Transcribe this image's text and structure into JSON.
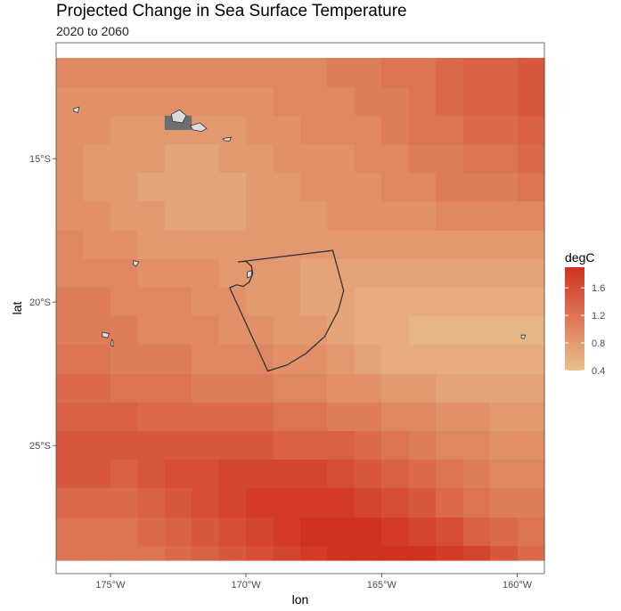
{
  "chart_data": {
    "type": "heatmap",
    "title": "Projected Change in Sea Surface Temperature",
    "subtitle": "2020 to 2060",
    "xlabel": "lon",
    "ylabel": "lat",
    "x_ticks": [
      {
        "value": -175,
        "label": "175°W"
      },
      {
        "value": -170,
        "label": "170°W"
      },
      {
        "value": -165,
        "label": "165°W"
      },
      {
        "value": -160,
        "label": "160°W"
      }
    ],
    "y_ticks": [
      {
        "value": -15,
        "label": "15°S"
      },
      {
        "value": -20,
        "label": "20°S"
      },
      {
        "value": -25,
        "label": "25°S"
      }
    ],
    "xlim": [
      -177,
      -159
    ],
    "ylim": [
      -29,
      -11.3
    ],
    "grid": {
      "lon_start": -177,
      "lat_start": -11.5,
      "cell_deg": 1,
      "cols": 18,
      "rows": 18
    },
    "values": [
      [
        1.0,
        1.0,
        1.0,
        1.0,
        1.0,
        1.0,
        1.0,
        1.0,
        1.0,
        1.0,
        1.1,
        1.1,
        1.2,
        1.2,
        1.3,
        1.4,
        1.4,
        1.5
      ],
      [
        0.9,
        0.9,
        0.9,
        0.9,
        0.9,
        0.9,
        0.9,
        0.9,
        1.0,
        1.0,
        1.0,
        1.1,
        1.1,
        1.2,
        1.3,
        1.4,
        1.4,
        1.5
      ],
      [
        0.9,
        0.9,
        0.8,
        0.8,
        0.8,
        0.8,
        0.8,
        0.9,
        0.9,
        1.0,
        1.0,
        1.0,
        1.1,
        1.2,
        1.2,
        1.3,
        1.3,
        1.4
      ],
      [
        0.9,
        0.8,
        0.8,
        0.8,
        0.7,
        0.7,
        0.8,
        0.8,
        0.9,
        0.9,
        0.9,
        1.0,
        1.0,
        1.1,
        1.1,
        1.2,
        1.2,
        1.3
      ],
      [
        0.9,
        0.8,
        0.8,
        0.7,
        0.7,
        0.7,
        0.7,
        0.8,
        0.8,
        0.9,
        0.9,
        0.9,
        1.0,
        1.0,
        1.1,
        1.1,
        1.1,
        1.2
      ],
      [
        0.9,
        0.9,
        0.8,
        0.8,
        0.7,
        0.7,
        0.7,
        0.8,
        0.8,
        0.8,
        0.9,
        0.9,
        0.9,
        0.9,
        1.0,
        1.0,
        1.0,
        1.0
      ],
      [
        1.0,
        0.9,
        0.9,
        0.8,
        0.8,
        0.8,
        0.8,
        0.8,
        0.8,
        0.8,
        0.8,
        0.8,
        0.8,
        0.8,
        0.8,
        0.8,
        0.8,
        0.8
      ],
      [
        1.0,
        1.0,
        1.0,
        0.9,
        0.9,
        0.9,
        0.8,
        0.8,
        0.8,
        0.7,
        0.7,
        0.7,
        0.7,
        0.7,
        0.7,
        0.7,
        0.7,
        0.7
      ],
      [
        1.1,
        1.1,
        1.0,
        1.0,
        1.0,
        0.9,
        0.9,
        0.8,
        0.8,
        0.7,
        0.7,
        0.6,
        0.6,
        0.6,
        0.6,
        0.6,
        0.6,
        0.6
      ],
      [
        1.1,
        1.1,
        1.1,
        1.0,
        1.0,
        1.0,
        0.9,
        0.9,
        0.8,
        0.8,
        0.7,
        0.6,
        0.6,
        0.5,
        0.5,
        0.5,
        0.5,
        0.5
      ],
      [
        1.2,
        1.2,
        1.1,
        1.1,
        1.1,
        1.0,
        1.0,
        1.0,
        0.9,
        0.9,
        0.8,
        0.7,
        0.6,
        0.6,
        0.6,
        0.6,
        0.6,
        0.6
      ],
      [
        1.3,
        1.3,
        1.2,
        1.2,
        1.2,
        1.1,
        1.1,
        1.1,
        1.0,
        1.0,
        0.9,
        0.9,
        0.8,
        0.8,
        0.7,
        0.7,
        0.7,
        0.7
      ],
      [
        1.4,
        1.4,
        1.4,
        1.3,
        1.3,
        1.3,
        1.3,
        1.3,
        1.2,
        1.2,
        1.1,
        1.1,
        1.0,
        1.0,
        0.9,
        0.9,
        0.8,
        0.8
      ],
      [
        1.5,
        1.5,
        1.5,
        1.5,
        1.5,
        1.5,
        1.5,
        1.5,
        1.4,
        1.4,
        1.4,
        1.3,
        1.2,
        1.1,
        1.0,
        1.0,
        0.9,
        0.9
      ],
      [
        1.5,
        1.5,
        1.4,
        1.5,
        1.6,
        1.6,
        1.7,
        1.7,
        1.7,
        1.7,
        1.6,
        1.5,
        1.4,
        1.3,
        1.2,
        1.1,
        1.0,
        1.0
      ],
      [
        1.3,
        1.3,
        1.3,
        1.4,
        1.5,
        1.6,
        1.7,
        1.8,
        1.8,
        1.8,
        1.8,
        1.7,
        1.6,
        1.5,
        1.3,
        1.2,
        1.1,
        1.1
      ],
      [
        1.2,
        1.2,
        1.2,
        1.3,
        1.4,
        1.5,
        1.6,
        1.7,
        1.8,
        1.9,
        1.9,
        1.9,
        1.8,
        1.7,
        1.6,
        1.4,
        1.3,
        1.2
      ],
      [
        1.2,
        1.2,
        1.2,
        1.2,
        1.3,
        1.4,
        1.5,
        1.6,
        1.7,
        1.8,
        1.9,
        2.0,
        2.0,
        1.9,
        1.8,
        1.7,
        1.5,
        1.3
      ]
    ],
    "legend": {
      "title": "degC",
      "placement": "right",
      "range": [
        0.4,
        1.9
      ],
      "ticks": [
        {
          "value": 1.6,
          "label": "1.6"
        },
        {
          "value": 1.2,
          "label": "1.2"
        },
        {
          "value": 0.8,
          "label": "0.8"
        },
        {
          "value": 0.4,
          "label": "0.4"
        }
      ],
      "color_low": "#E9BF8E",
      "color_high": "#D1321F"
    },
    "colors": {
      "panel_border": "#4d4d4d",
      "island_fill": "#dcdcdc",
      "island_stroke": "#333333",
      "masked_cell": "#6e6e6e",
      "region_outline": "#333333"
    },
    "masked_cells": [
      [
        -173,
        -13.5
      ]
    ],
    "islands": [
      [
        [
          -176.35,
          -13.25
        ],
        [
          -176.15,
          -13.2
        ],
        [
          -176.2,
          -13.4
        ],
        [
          -176.35,
          -13.35
        ]
      ],
      [
        [
          -172.75,
          -13.45
        ],
        [
          -172.45,
          -13.3
        ],
        [
          -172.2,
          -13.5
        ],
        [
          -172.35,
          -13.75
        ],
        [
          -172.7,
          -13.7
        ]
      ],
      [
        [
          -172.05,
          -13.85
        ],
        [
          -171.7,
          -13.75
        ],
        [
          -171.45,
          -13.95
        ],
        [
          -171.65,
          -14.05
        ],
        [
          -171.95,
          -14.0
        ]
      ],
      [
        [
          -170.85,
          -14.3
        ],
        [
          -170.55,
          -14.25
        ],
        [
          -170.6,
          -14.38
        ],
        [
          -170.8,
          -14.37
        ]
      ],
      [
        [
          -174.15,
          -18.55
        ],
        [
          -173.95,
          -18.6
        ],
        [
          -174.05,
          -18.75
        ],
        [
          -174.15,
          -18.7
        ]
      ],
      [
        [
          -175.3,
          -21.05
        ],
        [
          -175.05,
          -21.1
        ],
        [
          -175.1,
          -21.25
        ],
        [
          -175.3,
          -21.2
        ]
      ],
      [
        [
          -174.95,
          -21.3
        ],
        [
          -174.9,
          -21.35
        ],
        [
          -174.9,
          -21.55
        ],
        [
          -174.98,
          -21.5
        ]
      ],
      [
        [
          -169.95,
          -18.95
        ],
        [
          -169.8,
          -18.9
        ],
        [
          -169.8,
          -19.1
        ],
        [
          -169.95,
          -19.15
        ]
      ],
      [
        [
          -159.85,
          -21.15
        ],
        [
          -159.7,
          -21.15
        ],
        [
          -159.75,
          -21.28
        ],
        [
          -159.85,
          -21.25
        ]
      ]
    ],
    "region_outline": [
      [
        -170.3,
        -18.6
      ],
      [
        -166.8,
        -18.2
      ],
      [
        -166.4,
        -19.6
      ],
      [
        -166.6,
        -20.3
      ],
      [
        -167.1,
        -21.2
      ],
      [
        -167.8,
        -21.8
      ],
      [
        -168.5,
        -22.2
      ],
      [
        -169.2,
        -22.4
      ],
      [
        -170.6,
        -19.5
      ],
      [
        -170.35,
        -19.4
      ],
      [
        -170.1,
        -19.45
      ],
      [
        -169.88,
        -19.3
      ],
      [
        -169.75,
        -19.0
      ],
      [
        -169.8,
        -18.75
      ],
      [
        -170.0,
        -18.58
      ],
      [
        -170.3,
        -18.6
      ]
    ]
  }
}
